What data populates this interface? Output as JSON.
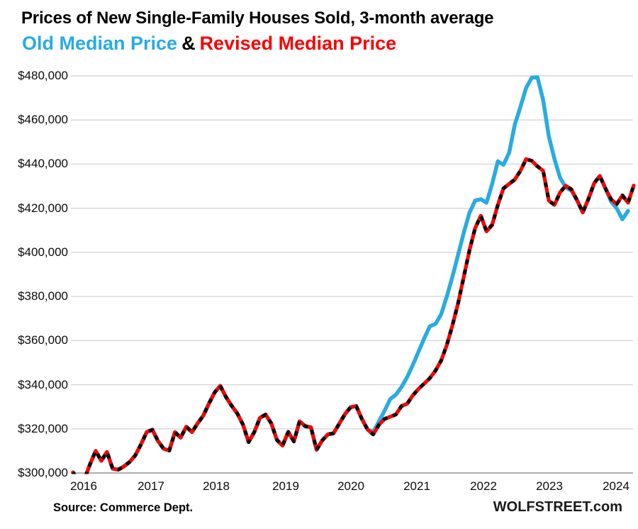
{
  "header": {
    "title": "Prices of New Single-Family Houses Sold, 3-month average",
    "legend": {
      "old": "Old Median Price",
      "amp": "&",
      "revised": "Revised Median Price"
    }
  },
  "footer": {
    "source": "Source: Commerce Dept.",
    "watermark": "WOLFSTREET.com"
  },
  "colors": {
    "old_line": "#29abe2",
    "revised_line": "#fb0000",
    "revised_dash_overlay": "#0d0d0d",
    "gridline": "#d6d6d6",
    "axis_line": "#a6a6a6",
    "title_text": "#000000"
  },
  "chart_data": {
    "type": "line",
    "title": "Prices of New Single-Family Houses Sold, 3-month average",
    "units": "USD thousands",
    "frequency": "monthly",
    "x_start": "2016-01",
    "x_end": "2024-04",
    "xlabel": "",
    "ylabel": "",
    "ylim": [
      300,
      480
    ],
    "grid": true,
    "legend_position": "top-as-subtitle",
    "x_tick_labels": [
      "2016",
      "2017",
      "2018",
      "2019",
      "2020",
      "2021",
      "2022",
      "2023",
      "2024"
    ],
    "y_ticks": [
      {
        "label": "$480,000",
        "value": 480
      },
      {
        "label": "$460,000",
        "value": 460
      },
      {
        "label": "$440,000",
        "value": 440
      },
      {
        "label": "$420,000",
        "value": 420
      },
      {
        "label": "$400,000",
        "value": 400
      },
      {
        "label": "$380,000",
        "value": 380
      },
      {
        "label": "$360,000",
        "value": 360
      },
      {
        "label": "$340,000",
        "value": 340
      },
      {
        "label": "$320,000",
        "value": 320
      },
      {
        "label": "$300,000",
        "value": 300
      }
    ],
    "series": [
      {
        "name": "Old Median Price",
        "color": "#29abe2",
        "style": "solid",
        "values": [
          300.3,
          296,
          297,
          304,
          310,
          305.5,
          309.5,
          302,
          301.5,
          303,
          305,
          308,
          313,
          318.5,
          319.6,
          314.5,
          311,
          310.2,
          318.5,
          316,
          321,
          318.5,
          322.5,
          326,
          331.5,
          336.5,
          339.5,
          334.5,
          330.5,
          327,
          322,
          314,
          318.5,
          325,
          326.5,
          322.5,
          315,
          312.4,
          318.6,
          314.3,
          323.4,
          321.2,
          320.7,
          310.5,
          314.8,
          317.5,
          318,
          322.3,
          326.6,
          329.8,
          330.3,
          324.5,
          319.7,
          318.5,
          323.4,
          328.2,
          333.5,
          335.5,
          339,
          343.5,
          349,
          355,
          361,
          366.5,
          367.6,
          372,
          380,
          389,
          399,
          409,
          418,
          423.5,
          424.1,
          422.5,
          431,
          441.3,
          439.7,
          445.1,
          457.9,
          466,
          474.6,
          479.2,
          479.4,
          469,
          452.6,
          442.4,
          433.8,
          429.5,
          427.9,
          423.6,
          418.1,
          424.2,
          431.3,
          434.6,
          429,
          423,
          419.9,
          415,
          418.8,
          null
        ]
      },
      {
        "name": "Revised Median Price",
        "color": "#fb0000",
        "style": "solid-with-black-dash-overlay",
        "values": [
          300.3,
          296,
          297,
          304,
          310,
          305.5,
          309.5,
          302,
          301.5,
          303,
          305,
          308,
          313,
          318.5,
          319.6,
          314.5,
          311,
          310.2,
          318.5,
          316,
          321,
          318.5,
          322.5,
          326,
          331.5,
          336.5,
          339.5,
          334.5,
          330.5,
          327,
          322,
          314,
          318.5,
          325,
          326.5,
          322.5,
          315,
          312.4,
          318.6,
          314.3,
          323.4,
          321.2,
          320.7,
          310.5,
          314.8,
          317.5,
          318,
          322.3,
          326.6,
          329.8,
          330.3,
          324.5,
          319.7,
          317.5,
          321.8,
          324.5,
          325.5,
          326.5,
          330.3,
          331.4,
          335.2,
          338.1,
          340.5,
          343,
          346.4,
          351,
          358,
          367,
          377,
          389,
          401,
          411,
          416.6,
          409.5,
          412.5,
          421.5,
          429,
          431,
          433,
          437,
          442.3,
          441.5,
          439,
          437,
          423.5,
          421.5,
          427.2,
          430.2,
          428.5,
          423.6,
          418.1,
          424.2,
          431.3,
          434.6,
          429,
          424,
          421.9,
          425.8,
          422.5,
          430.3
        ]
      }
    ]
  }
}
